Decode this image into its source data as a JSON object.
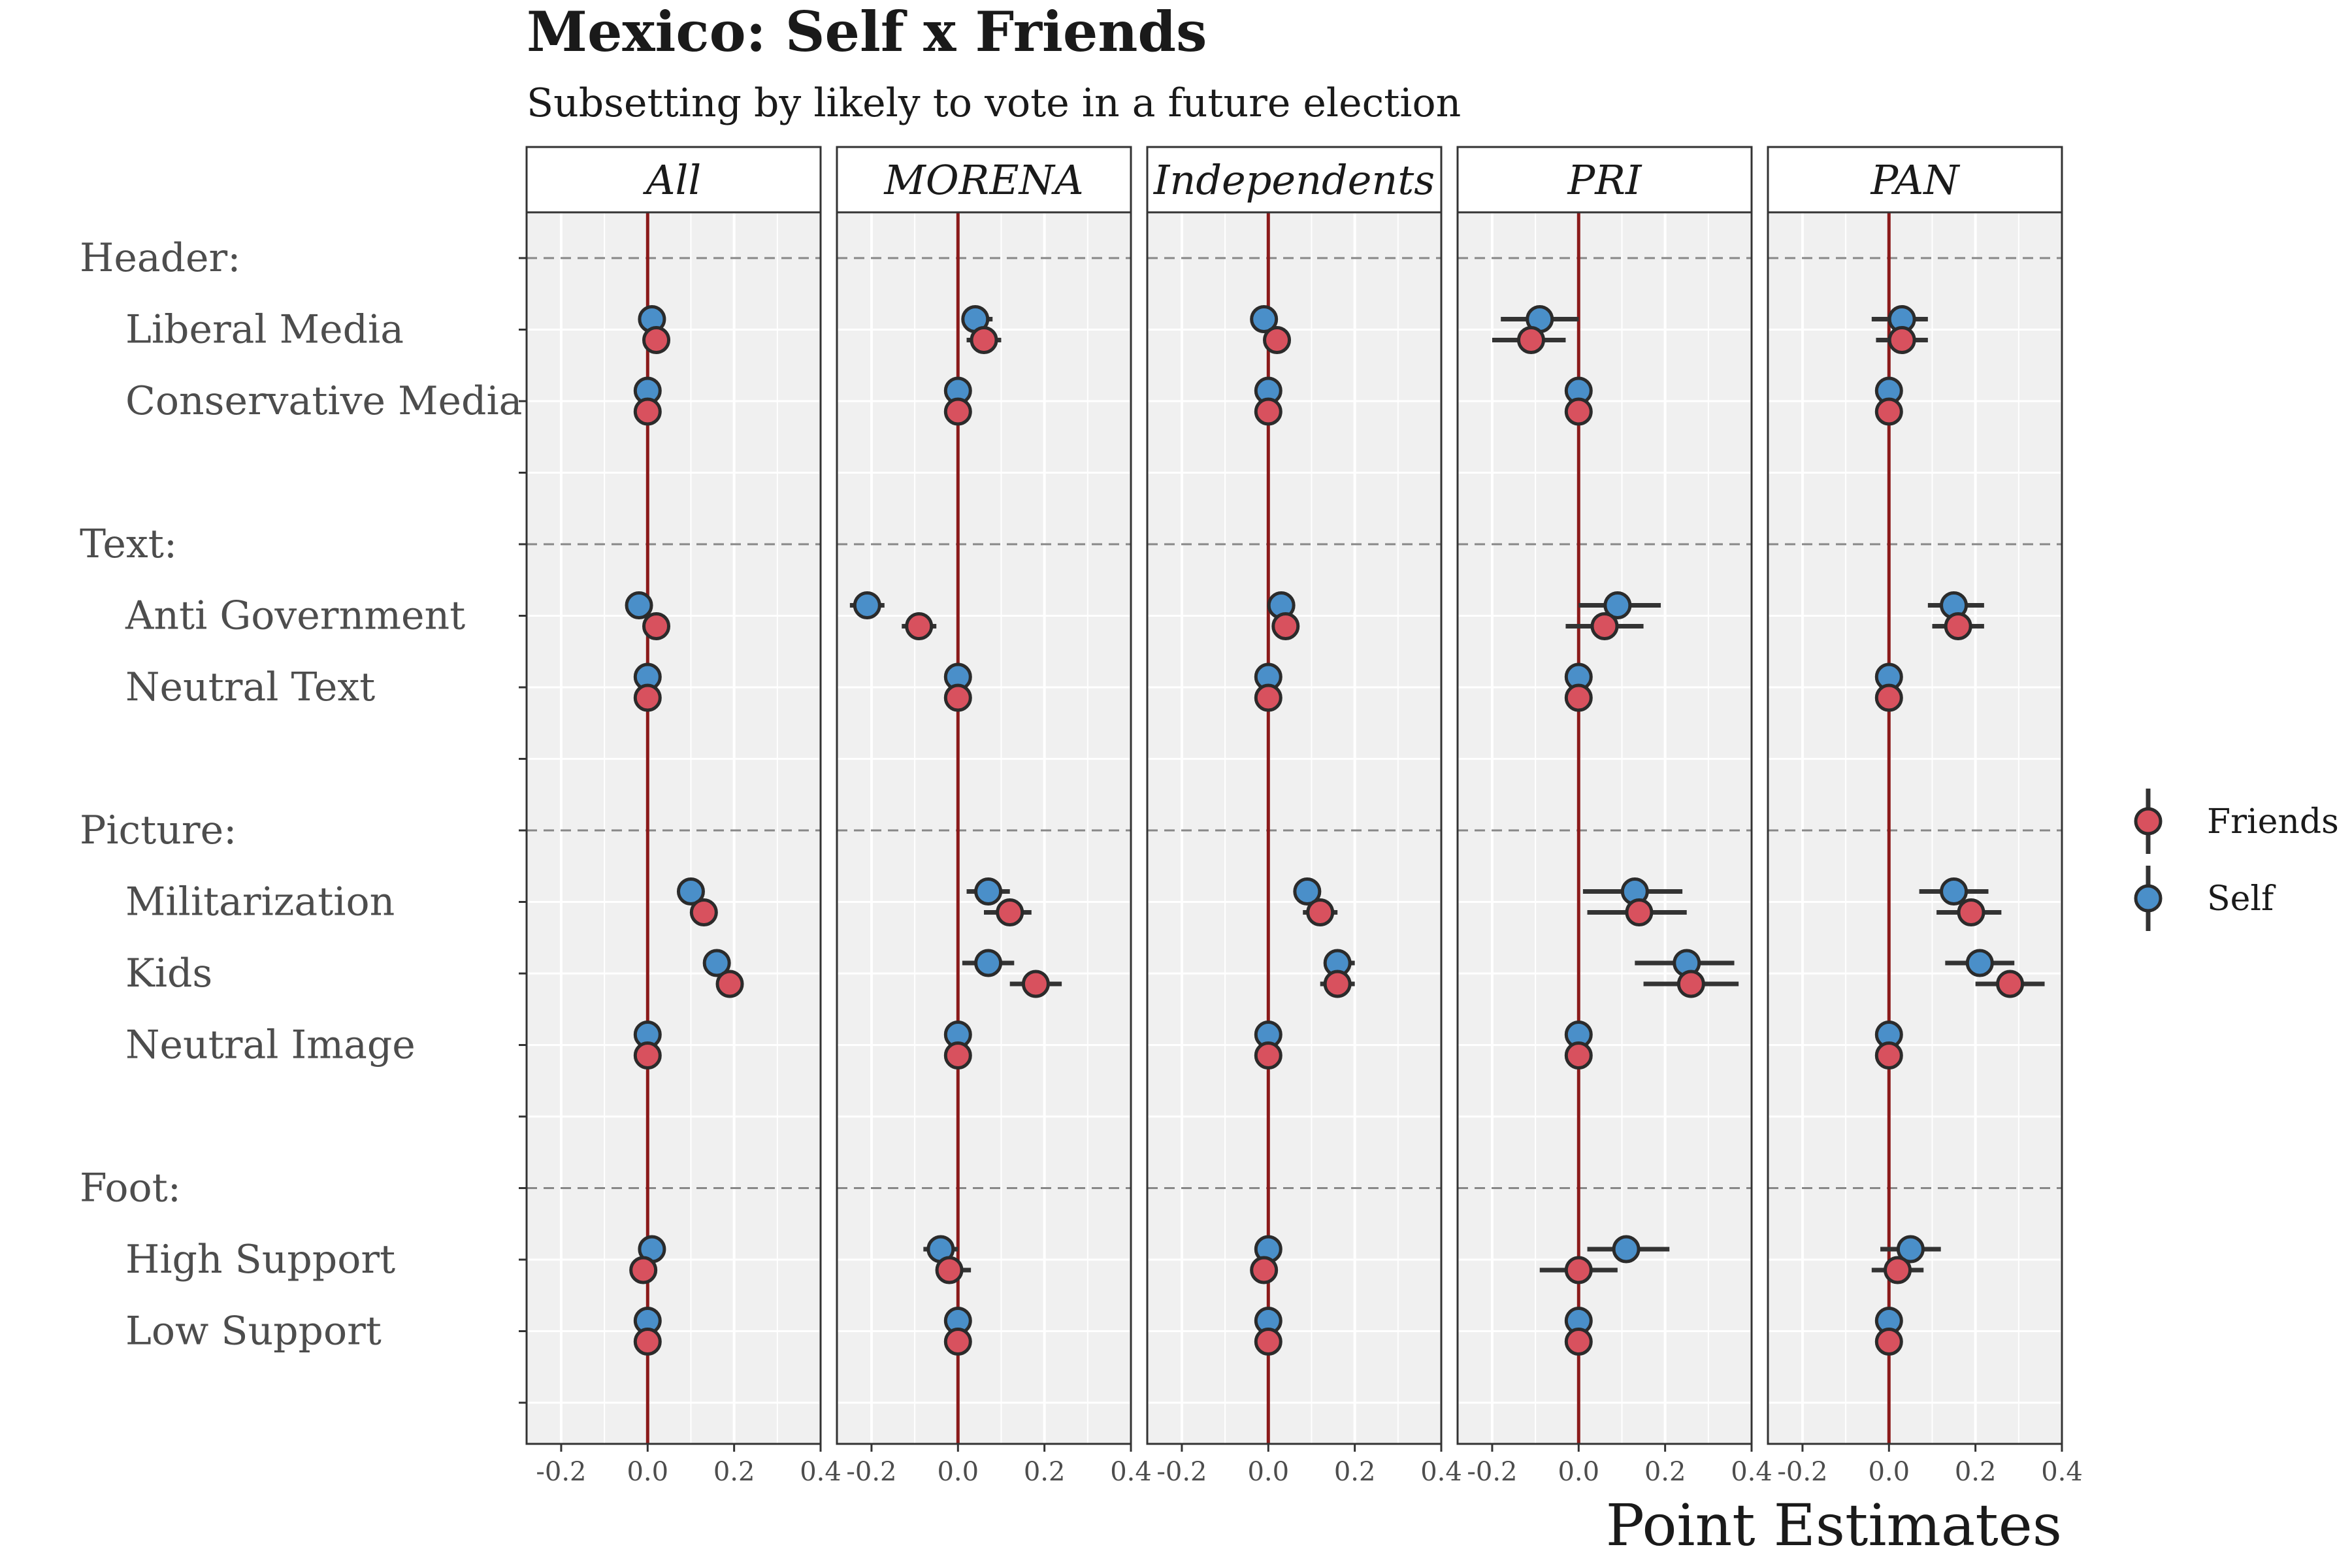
{
  "chart_data": {
    "type": "scatter",
    "title": "Mexico: Self x Friends",
    "subtitle": "Subsetting by likely to vote in a future election",
    "xlabel": "Point Estimates",
    "ylabel": "",
    "xlim": [
      -0.28,
      0.4
    ],
    "x_ticks": [
      "-0.2",
      "0.0",
      "0.2",
      "0.4"
    ],
    "x_tick_values": [
      -0.2,
      0.0,
      0.2,
      0.4
    ],
    "grid": true,
    "reference_line_x": 0,
    "legend_position": "right",
    "colors": {
      "panel_bg": "#f0f0f0",
      "grid": "#ffffff",
      "reference_line": "#8b1a1a",
      "friends": "#d8515e",
      "self": "#4a8fc9",
      "marker_stroke": "#2b2b2b",
      "error_bar": "#333333",
      "group_divider": "#888888"
    },
    "rows": [
      {
        "label": "Header:",
        "type": "group"
      },
      {
        "label": "Liberal Media",
        "type": "level"
      },
      {
        "label": "Conservative Media",
        "type": "level"
      },
      {
        "label": "",
        "type": "spacer"
      },
      {
        "label": "Text:",
        "type": "group"
      },
      {
        "label": "Anti Government",
        "type": "level"
      },
      {
        "label": "Neutral Text",
        "type": "level"
      },
      {
        "label": "",
        "type": "spacer"
      },
      {
        "label": "Picture:",
        "type": "group"
      },
      {
        "label": "Militarization",
        "type": "level"
      },
      {
        "label": "Kids",
        "type": "level"
      },
      {
        "label": "Neutral Image",
        "type": "level"
      },
      {
        "label": "",
        "type": "spacer"
      },
      {
        "label": "Foot:",
        "type": "group"
      },
      {
        "label": "High Support",
        "type": "level"
      },
      {
        "label": "Low Support",
        "type": "level"
      },
      {
        "label": "",
        "type": "spacer"
      }
    ],
    "series": [
      {
        "name": "Friends",
        "color": "#d8515e"
      },
      {
        "name": "Self",
        "color": "#4a8fc9"
      }
    ],
    "panels": [
      {
        "name": "All",
        "points": [
          {
            "row": "Liberal Media",
            "series": "Self",
            "est": 0.01,
            "lo": 0.0,
            "hi": 0.02
          },
          {
            "row": "Liberal Media",
            "series": "Friends",
            "est": 0.02,
            "lo": 0.01,
            "hi": 0.03
          },
          {
            "row": "Conservative Media",
            "series": "Self",
            "est": 0.0,
            "lo": 0.0,
            "hi": 0.0
          },
          {
            "row": "Conservative Media",
            "series": "Friends",
            "est": 0.0,
            "lo": 0.0,
            "hi": 0.0
          },
          {
            "row": "Anti Government",
            "series": "Self",
            "est": -0.02,
            "lo": -0.03,
            "hi": -0.01
          },
          {
            "row": "Anti Government",
            "series": "Friends",
            "est": 0.02,
            "lo": 0.01,
            "hi": 0.03
          },
          {
            "row": "Neutral Text",
            "series": "Self",
            "est": 0.0,
            "lo": 0.0,
            "hi": 0.0
          },
          {
            "row": "Neutral Text",
            "series": "Friends",
            "est": 0.0,
            "lo": 0.0,
            "hi": 0.0
          },
          {
            "row": "Militarization",
            "series": "Self",
            "est": 0.1,
            "lo": 0.09,
            "hi": 0.11
          },
          {
            "row": "Militarization",
            "series": "Friends",
            "est": 0.13,
            "lo": 0.12,
            "hi": 0.14
          },
          {
            "row": "Kids",
            "series": "Self",
            "est": 0.16,
            "lo": 0.15,
            "hi": 0.17
          },
          {
            "row": "Kids",
            "series": "Friends",
            "est": 0.19,
            "lo": 0.18,
            "hi": 0.2
          },
          {
            "row": "Neutral Image",
            "series": "Self",
            "est": 0.0,
            "lo": 0.0,
            "hi": 0.0
          },
          {
            "row": "Neutral Image",
            "series": "Friends",
            "est": 0.0,
            "lo": 0.0,
            "hi": 0.0
          },
          {
            "row": "High Support",
            "series": "Self",
            "est": 0.01,
            "lo": 0.0,
            "hi": 0.02
          },
          {
            "row": "High Support",
            "series": "Friends",
            "est": -0.01,
            "lo": -0.02,
            "hi": 0.0
          },
          {
            "row": "Low Support",
            "series": "Self",
            "est": 0.0,
            "lo": 0.0,
            "hi": 0.0
          },
          {
            "row": "Low Support",
            "series": "Friends",
            "est": 0.0,
            "lo": 0.0,
            "hi": 0.0
          }
        ]
      },
      {
        "name": "MORENA",
        "points": [
          {
            "row": "Liberal Media",
            "series": "Self",
            "est": 0.04,
            "lo": 0.01,
            "hi": 0.08
          },
          {
            "row": "Liberal Media",
            "series": "Friends",
            "est": 0.06,
            "lo": 0.02,
            "hi": 0.1
          },
          {
            "row": "Conservative Media",
            "series": "Self",
            "est": 0.0,
            "lo": 0.0,
            "hi": 0.0
          },
          {
            "row": "Conservative Media",
            "series": "Friends",
            "est": 0.0,
            "lo": 0.0,
            "hi": 0.0
          },
          {
            "row": "Anti Government",
            "series": "Self",
            "est": -0.21,
            "lo": -0.25,
            "hi": -0.17
          },
          {
            "row": "Anti Government",
            "series": "Friends",
            "est": -0.09,
            "lo": -0.13,
            "hi": -0.05
          },
          {
            "row": "Neutral Text",
            "series": "Self",
            "est": 0.0,
            "lo": 0.0,
            "hi": 0.0
          },
          {
            "row": "Neutral Text",
            "series": "Friends",
            "est": 0.0,
            "lo": 0.0,
            "hi": 0.0
          },
          {
            "row": "Militarization",
            "series": "Self",
            "est": 0.07,
            "lo": 0.02,
            "hi": 0.12
          },
          {
            "row": "Militarization",
            "series": "Friends",
            "est": 0.12,
            "lo": 0.06,
            "hi": 0.17
          },
          {
            "row": "Kids",
            "series": "Self",
            "est": 0.07,
            "lo": 0.01,
            "hi": 0.13
          },
          {
            "row": "Kids",
            "series": "Friends",
            "est": 0.18,
            "lo": 0.12,
            "hi": 0.24
          },
          {
            "row": "Neutral Image",
            "series": "Self",
            "est": 0.0,
            "lo": 0.0,
            "hi": 0.0
          },
          {
            "row": "Neutral Image",
            "series": "Friends",
            "est": 0.0,
            "lo": 0.0,
            "hi": 0.0
          },
          {
            "row": "High Support",
            "series": "Self",
            "est": -0.04,
            "lo": -0.08,
            "hi": 0.0
          },
          {
            "row": "High Support",
            "series": "Friends",
            "est": -0.02,
            "lo": -0.05,
            "hi": 0.03
          },
          {
            "row": "Low Support",
            "series": "Self",
            "est": 0.0,
            "lo": 0.0,
            "hi": 0.0
          },
          {
            "row": "Low Support",
            "series": "Friends",
            "est": 0.0,
            "lo": 0.0,
            "hi": 0.0
          }
        ]
      },
      {
        "name": "Independents",
        "points": [
          {
            "row": "Liberal Media",
            "series": "Self",
            "est": -0.01,
            "lo": -0.02,
            "hi": 0.0
          },
          {
            "row": "Liberal Media",
            "series": "Friends",
            "est": 0.02,
            "lo": 0.01,
            "hi": 0.03
          },
          {
            "row": "Conservative Media",
            "series": "Self",
            "est": 0.0,
            "lo": 0.0,
            "hi": 0.0
          },
          {
            "row": "Conservative Media",
            "series": "Friends",
            "est": 0.0,
            "lo": 0.0,
            "hi": 0.0
          },
          {
            "row": "Anti Government",
            "series": "Self",
            "est": 0.03,
            "lo": 0.02,
            "hi": 0.04
          },
          {
            "row": "Anti Government",
            "series": "Friends",
            "est": 0.04,
            "lo": 0.03,
            "hi": 0.05
          },
          {
            "row": "Neutral Text",
            "series": "Self",
            "est": 0.0,
            "lo": 0.0,
            "hi": 0.0
          },
          {
            "row": "Neutral Text",
            "series": "Friends",
            "est": 0.0,
            "lo": 0.0,
            "hi": 0.0
          },
          {
            "row": "Militarization",
            "series": "Self",
            "est": 0.09,
            "lo": 0.07,
            "hi": 0.12
          },
          {
            "row": "Militarization",
            "series": "Friends",
            "est": 0.12,
            "lo": 0.08,
            "hi": 0.16
          },
          {
            "row": "Kids",
            "series": "Self",
            "est": 0.16,
            "lo": 0.13,
            "hi": 0.2
          },
          {
            "row": "Kids",
            "series": "Friends",
            "est": 0.16,
            "lo": 0.12,
            "hi": 0.2
          },
          {
            "row": "Neutral Image",
            "series": "Self",
            "est": 0.0,
            "lo": 0.0,
            "hi": 0.0
          },
          {
            "row": "Neutral Image",
            "series": "Friends",
            "est": 0.0,
            "lo": 0.0,
            "hi": 0.0
          },
          {
            "row": "High Support",
            "series": "Self",
            "est": 0.0,
            "lo": -0.01,
            "hi": 0.01
          },
          {
            "row": "High Support",
            "series": "Friends",
            "est": -0.01,
            "lo": -0.02,
            "hi": 0.0
          },
          {
            "row": "Low Support",
            "series": "Self",
            "est": 0.0,
            "lo": 0.0,
            "hi": 0.0
          },
          {
            "row": "Low Support",
            "series": "Friends",
            "est": 0.0,
            "lo": 0.0,
            "hi": 0.0
          }
        ]
      },
      {
        "name": "PRI",
        "points": [
          {
            "row": "Liberal Media",
            "series": "Self",
            "est": -0.09,
            "lo": -0.18,
            "hi": 0.0
          },
          {
            "row": "Liberal Media",
            "series": "Friends",
            "est": -0.11,
            "lo": -0.2,
            "hi": -0.03
          },
          {
            "row": "Conservative Media",
            "series": "Self",
            "est": 0.0,
            "lo": 0.0,
            "hi": 0.0
          },
          {
            "row": "Conservative Media",
            "series": "Friends",
            "est": 0.0,
            "lo": 0.0,
            "hi": 0.0
          },
          {
            "row": "Anti Government",
            "series": "Self",
            "est": 0.09,
            "lo": 0.0,
            "hi": 0.19
          },
          {
            "row": "Anti Government",
            "series": "Friends",
            "est": 0.06,
            "lo": -0.03,
            "hi": 0.15
          },
          {
            "row": "Neutral Text",
            "series": "Self",
            "est": 0.0,
            "lo": 0.0,
            "hi": 0.0
          },
          {
            "row": "Neutral Text",
            "series": "Friends",
            "est": 0.0,
            "lo": 0.0,
            "hi": 0.0
          },
          {
            "row": "Militarization",
            "series": "Self",
            "est": 0.13,
            "lo": 0.01,
            "hi": 0.24
          },
          {
            "row": "Militarization",
            "series": "Friends",
            "est": 0.14,
            "lo": 0.02,
            "hi": 0.25
          },
          {
            "row": "Kids",
            "series": "Self",
            "est": 0.25,
            "lo": 0.13,
            "hi": 0.36
          },
          {
            "row": "Kids",
            "series": "Friends",
            "est": 0.26,
            "lo": 0.15,
            "hi": 0.37
          },
          {
            "row": "Neutral Image",
            "series": "Self",
            "est": 0.0,
            "lo": 0.0,
            "hi": 0.0
          },
          {
            "row": "Neutral Image",
            "series": "Friends",
            "est": 0.0,
            "lo": 0.0,
            "hi": 0.0
          },
          {
            "row": "High Support",
            "series": "Self",
            "est": 0.11,
            "lo": 0.02,
            "hi": 0.21
          },
          {
            "row": "High Support",
            "series": "Friends",
            "est": 0.0,
            "lo": -0.09,
            "hi": 0.09
          },
          {
            "row": "Low Support",
            "series": "Self",
            "est": 0.0,
            "lo": 0.0,
            "hi": 0.0
          },
          {
            "row": "Low Support",
            "series": "Friends",
            "est": 0.0,
            "lo": 0.0,
            "hi": 0.0
          }
        ]
      },
      {
        "name": "PAN",
        "points": [
          {
            "row": "Liberal Media",
            "series": "Self",
            "est": 0.03,
            "lo": -0.04,
            "hi": 0.09
          },
          {
            "row": "Liberal Media",
            "series": "Friends",
            "est": 0.03,
            "lo": -0.03,
            "hi": 0.09
          },
          {
            "row": "Conservative Media",
            "series": "Self",
            "est": 0.0,
            "lo": 0.0,
            "hi": 0.0
          },
          {
            "row": "Conservative Media",
            "series": "Friends",
            "est": 0.0,
            "lo": 0.0,
            "hi": 0.0
          },
          {
            "row": "Anti Government",
            "series": "Self",
            "est": 0.15,
            "lo": 0.09,
            "hi": 0.22
          },
          {
            "row": "Anti Government",
            "series": "Friends",
            "est": 0.16,
            "lo": 0.1,
            "hi": 0.22
          },
          {
            "row": "Neutral Text",
            "series": "Self",
            "est": 0.0,
            "lo": 0.0,
            "hi": 0.0
          },
          {
            "row": "Neutral Text",
            "series": "Friends",
            "est": 0.0,
            "lo": 0.0,
            "hi": 0.0
          },
          {
            "row": "Militarization",
            "series": "Self",
            "est": 0.15,
            "lo": 0.07,
            "hi": 0.23
          },
          {
            "row": "Militarization",
            "series": "Friends",
            "est": 0.19,
            "lo": 0.11,
            "hi": 0.26
          },
          {
            "row": "Kids",
            "series": "Self",
            "est": 0.21,
            "lo": 0.13,
            "hi": 0.29
          },
          {
            "row": "Kids",
            "series": "Friends",
            "est": 0.28,
            "lo": 0.2,
            "hi": 0.36
          },
          {
            "row": "Neutral Image",
            "series": "Self",
            "est": 0.0,
            "lo": 0.0,
            "hi": 0.0
          },
          {
            "row": "Neutral Image",
            "series": "Friends",
            "est": 0.0,
            "lo": 0.0,
            "hi": 0.0
          },
          {
            "row": "High Support",
            "series": "Self",
            "est": 0.05,
            "lo": -0.02,
            "hi": 0.12
          },
          {
            "row": "High Support",
            "series": "Friends",
            "est": 0.02,
            "lo": -0.04,
            "hi": 0.08
          },
          {
            "row": "Low Support",
            "series": "Self",
            "est": 0.0,
            "lo": 0.0,
            "hi": 0.0
          },
          {
            "row": "Low Support",
            "series": "Friends",
            "est": 0.0,
            "lo": 0.0,
            "hi": 0.0
          }
        ]
      }
    ]
  }
}
